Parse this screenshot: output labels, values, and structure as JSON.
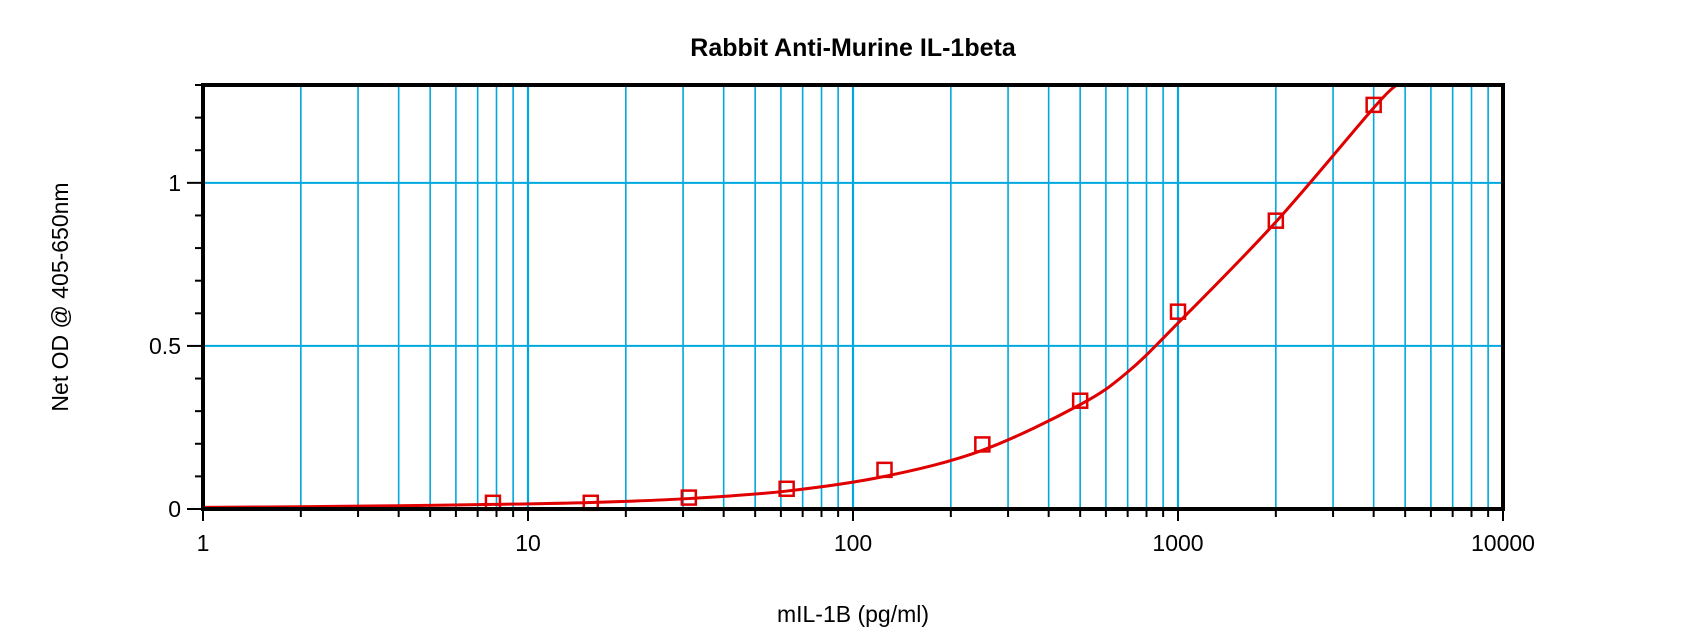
{
  "chart_data": {
    "type": "scatter",
    "title": "Rabbit Anti-Murine IL-1beta",
    "xlabel": "mIL-1B (pg/ml)",
    "ylabel": "Net OD @ 405-650nm",
    "xscale": "log",
    "xlim": [
      1,
      10000
    ],
    "ylim": [
      0,
      1.3
    ],
    "xticks": [
      "1",
      "10",
      "100",
      "1000",
      "10000"
    ],
    "yticks": [
      "0",
      "0.5",
      "1"
    ],
    "grid": true,
    "series": [
      {
        "marker": "open-square",
        "x": [
          7.8,
          15.6,
          31.25,
          62.5,
          125,
          250,
          500,
          1000,
          2000,
          4000
        ],
        "y": [
          0.019,
          0.019,
          0.035,
          0.062,
          0.12,
          0.198,
          0.332,
          0.605,
          0.884,
          1.239
        ]
      }
    ],
    "fit_curve": {
      "x": [
        1,
        2,
        4,
        7.8,
        15.6,
        31.25,
        62.5,
        125,
        250,
        500,
        700,
        1000,
        2000,
        4000,
        4700
      ],
      "y": [
        0.005,
        0.007,
        0.01,
        0.014,
        0.02,
        0.032,
        0.055,
        0.1,
        0.18,
        0.32,
        0.42,
        0.57,
        0.88,
        1.23,
        1.3
      ]
    },
    "colors": {
      "grid": "#00a8e0",
      "series": "#e00000",
      "axes": "#000000"
    }
  }
}
